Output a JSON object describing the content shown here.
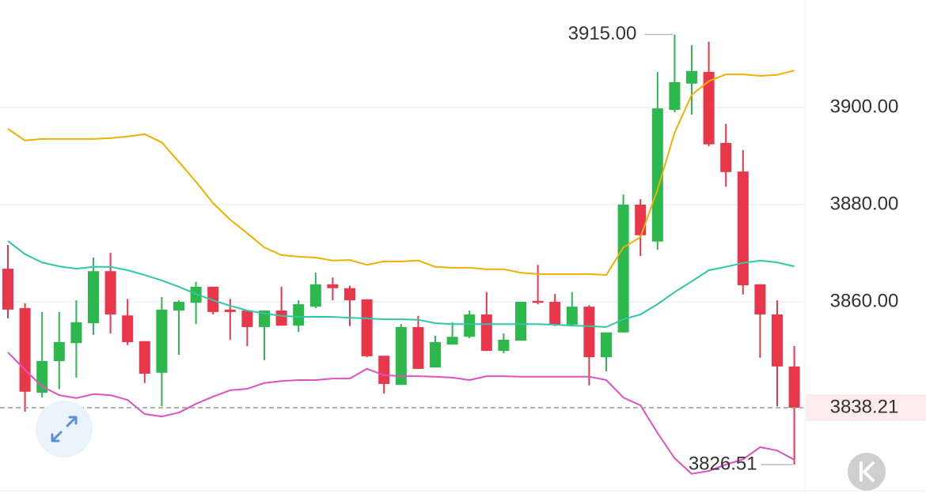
{
  "chart_data": {
    "type": "candlestick",
    "open": [
      3866.8,
      3858.7,
      3841.3,
      3847.8,
      3851.5,
      3855.6,
      3866.3,
      3857.2,
      3851.9,
      3845.4,
      3858.2,
      3859.8,
      3863.1,
      3858.4,
      3858.2,
      3854.8,
      3858.2,
      3855.1,
      3859.0,
      3863.6,
      3862.8,
      3860.5,
      3848.9,
      3842.9,
      3854.8,
      3846.5,
      3851.2,
      3852.8,
      3857.4,
      3849.9,
      3852.0,
      3860.2,
      3860.0,
      3855.3,
      3859.0,
      3848.6,
      3853.7,
      3880.0,
      3872.4,
      3899.5,
      3904.9,
      3907.3,
      3892.7,
      3886.8,
      3863.6,
      3857.4,
      3846.7
    ],
    "high": [
      3871.7,
      3859.7,
      3857.9,
      3857.9,
      3860.3,
      3869.1,
      3870.1,
      3860.6,
      3851.9,
      3861.0,
      3860.3,
      3864.1,
      3863.1,
      3860.6,
      3858.2,
      3858.2,
      3863.1,
      3860.3,
      3866.0,
      3865.0,
      3863.3,
      3860.5,
      3848.9,
      3855.4,
      3857.1,
      3853.0,
      3855.8,
      3858.2,
      3862.0,
      3853.5,
      3860.0,
      3867.6,
      3861.6,
      3862.0,
      3859.3,
      3853.7,
      3882.1,
      3881.1,
      3907.3,
      3915.0,
      3912.8,
      3913.5,
      3896.6,
      3891.2,
      3863.6,
      3860.3,
      3850.9
    ],
    "low": [
      3856.6,
      3837.4,
      3840.3,
      3842.0,
      3844.4,
      3853.2,
      3853.5,
      3851.1,
      3843.3,
      3838.5,
      3849.1,
      3855.4,
      3857.4,
      3852.2,
      3850.9,
      3848.0,
      3855.1,
      3853.8,
      3858.7,
      3860.3,
      3855.0,
      3848.6,
      3841.1,
      3842.9,
      3846.2,
      3846.5,
      3851.2,
      3852.5,
      3849.9,
      3849.4,
      3852.0,
      3859.5,
      3855.0,
      3855.0,
      3842.8,
      3845.7,
      3853.7,
      3869.4,
      3870.7,
      3899.0,
      3898.5,
      3892.0,
      3883.7,
      3861.5,
      3848.5,
      3838.5,
      3826.51
    ],
    "close": [
      3858.4,
      3841.5,
      3847.8,
      3851.7,
      3855.8,
      3866.3,
      3857.4,
      3851.7,
      3845.2,
      3858.4,
      3860.0,
      3863.1,
      3857.9,
      3857.9,
      3854.8,
      3858.2,
      3855.1,
      3859.5,
      3863.6,
      3862.8,
      3860.3,
      3848.8,
      3843.1,
      3854.8,
      3846.2,
      3851.7,
      3852.8,
      3857.4,
      3849.9,
      3852.2,
      3860.0,
      3859.8,
      3855.3,
      3859.0,
      3848.6,
      3853.7,
      3880.0,
      3873.7,
      3899.8,
      3905.2,
      3907.5,
      3892.4,
      3886.7,
      3863.4,
      3857.4,
      3846.7,
      3838.21
    ],
    "up_color": "#2db84d",
    "down_color": "#e8374a",
    "series": [
      {
        "color": "#f0b000",
        "values": [
          3895.6,
          3893.2,
          3893.5,
          3893.5,
          3893.5,
          3893.5,
          3893.7,
          3894.0,
          3894.5,
          3892.8,
          3888.8,
          3884.7,
          3880.3,
          3876.9,
          3874.1,
          3871.2,
          3869.6,
          3869.3,
          3869.1,
          3868.5,
          3868.6,
          3867.6,
          3868.3,
          3868.3,
          3868.5,
          3867.2,
          3867.0,
          3867.0,
          3866.7,
          3866.7,
          3866.0,
          3865.7,
          3865.7,
          3865.7,
          3865.7,
          3865.5,
          3871.2,
          3873.3,
          3883.1,
          3894.8,
          3902.6,
          3905.4,
          3906.8,
          3906.8,
          3906.5,
          3906.7,
          3907.6
        ]
      },
      {
        "color": "#2ec8a6",
        "values": [
          3872.5,
          3869.8,
          3868.1,
          3867.3,
          3866.8,
          3867.2,
          3867.2,
          3866.5,
          3865.5,
          3864.4,
          3863.1,
          3861.6,
          3860.3,
          3859.2,
          3858.2,
          3857.6,
          3857.1,
          3856.9,
          3856.9,
          3856.9,
          3856.7,
          3856.6,
          3856.4,
          3856.4,
          3856.3,
          3855.6,
          3855.4,
          3855.4,
          3855.4,
          3855.4,
          3855.4,
          3855.4,
          3855.3,
          3855.1,
          3855.0,
          3854.8,
          3856.4,
          3857.4,
          3859.5,
          3862.0,
          3864.2,
          3866.5,
          3867.2,
          3868.0,
          3868.5,
          3868.1,
          3867.3
        ]
      },
      {
        "color": "#e050c0",
        "values": [
          3849.6,
          3846.0,
          3842.6,
          3840.8,
          3840.2,
          3841.0,
          3840.8,
          3839.8,
          3836.9,
          3836.4,
          3837.2,
          3839.0,
          3840.5,
          3841.8,
          3842.1,
          3843.3,
          3843.7,
          3843.9,
          3843.9,
          3844.2,
          3844.2,
          3846.2,
          3844.9,
          3844.7,
          3844.7,
          3844.6,
          3844.4,
          3843.9,
          3844.7,
          3844.7,
          3844.6,
          3844.6,
          3844.6,
          3844.6,
          3844.6,
          3843.9,
          3840.3,
          3838.7,
          3833.0,
          3827.8,
          3824.6,
          3825.2,
          3826.5,
          3827.6,
          3830.1,
          3829.4,
          3827.5
        ]
      }
    ],
    "ylim": [
      3821.3,
      3922.1
    ],
    "yticks": [
      {
        "value": 3900,
        "label": "3900.00"
      },
      {
        "value": 3880,
        "label": "3880.00"
      },
      {
        "value": 3860,
        "label": "3860.00"
      }
    ],
    "grid": true,
    "max_label": {
      "value": 3915.0,
      "label": "3915.00"
    },
    "min_label": {
      "value": 3826.51,
      "label": "3826.51"
    },
    "last_price": {
      "value": 3838.21,
      "label": "3838.21"
    }
  }
}
